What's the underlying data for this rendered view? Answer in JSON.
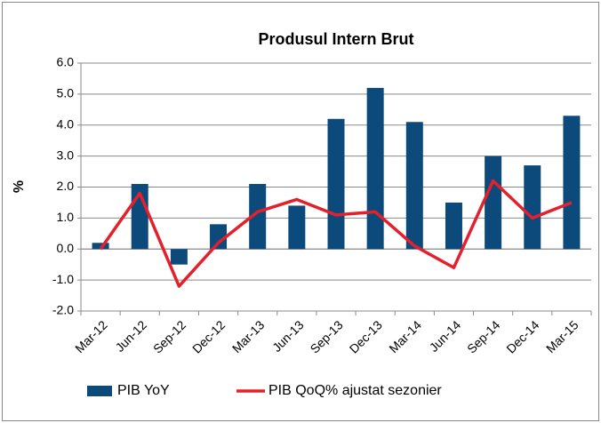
{
  "chart_data": {
    "type": "bar",
    "title": "Produsul Intern Brut",
    "y_label": "%",
    "categories": [
      "Mar-12",
      "Jun-12",
      "Sep-12",
      "Dec-12",
      "Mar-13",
      "Jun-13",
      "Sep-13",
      "Dec-13",
      "Mar-14",
      "Jun-14",
      "Sep-14",
      "Dec-14",
      "Mar-15"
    ],
    "series": [
      {
        "name": "PIB YoY",
        "type": "bar",
        "color": "#0d4a7c",
        "values": [
          0.2,
          2.1,
          -0.5,
          0.8,
          2.1,
          1.4,
          4.2,
          5.2,
          4.1,
          1.5,
          3.0,
          2.7,
          4.3
        ]
      },
      {
        "name": "PIB QoQ% ajustat sezonier",
        "type": "line",
        "color": "#e3202b",
        "values": [
          0.0,
          1.8,
          -1.2,
          0.2,
          1.2,
          1.6,
          1.1,
          1.2,
          0.1,
          -0.6,
          2.2,
          1.0,
          1.5
        ]
      }
    ],
    "ylim": [
      -2,
      6
    ],
    "yticks": [
      {
        "value": -2,
        "label": "-2.0"
      },
      {
        "value": -1,
        "label": "-1.0"
      },
      {
        "value": 0,
        "label": "0.0"
      },
      {
        "value": 1,
        "label": "1.0"
      },
      {
        "value": 2,
        "label": "2.0"
      },
      {
        "value": 3,
        "label": "3.0"
      },
      {
        "value": 4,
        "label": "4.0"
      },
      {
        "value": 5,
        "label": "5.0"
      },
      {
        "value": 6,
        "label": "6.0"
      }
    ],
    "grid": true,
    "legend": "bottom"
  }
}
